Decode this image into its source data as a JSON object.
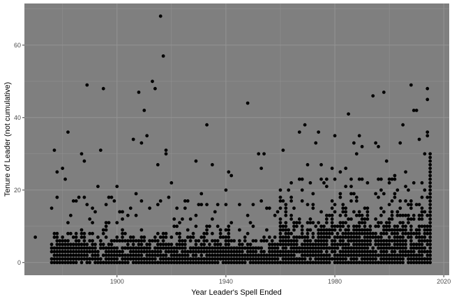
{
  "chart_data": {
    "type": "scatter",
    "title": "",
    "xlabel": "Year Leader's Spell Ended",
    "ylabel": "Tenure of Leader (not cumulative)",
    "xlim": [
      1866,
      2022
    ],
    "ylim": [
      -3.5,
      71.5
    ],
    "x_ticks": [
      1900,
      1940,
      1980,
      2020
    ],
    "y_ticks": [
      0,
      20,
      40,
      60
    ],
    "grid": true,
    "legend": "none",
    "colors": {
      "panel": "#7f7f7f",
      "grid": "#939393",
      "point": "#000000"
    },
    "points": [
      [
        1870,
        7
      ],
      [
        1876,
        15
      ],
      [
        1877,
        31
      ],
      [
        1878,
        25
      ],
      [
        1880,
        26
      ],
      [
        1881,
        23
      ],
      [
        1882,
        36
      ],
      [
        1884,
        17
      ],
      [
        1887,
        30
      ],
      [
        1888,
        28
      ],
      [
        1889,
        49
      ],
      [
        1888,
        18
      ],
      [
        1890,
        12
      ],
      [
        1891,
        15
      ],
      [
        1893,
        21
      ],
      [
        1894,
        31
      ],
      [
        1895,
        48
      ],
      [
        1897,
        18
      ],
      [
        1899,
        17
      ],
      [
        1900,
        21
      ],
      [
        1902,
        12
      ],
      [
        1904,
        13
      ],
      [
        1906,
        34
      ],
      [
        1907,
        19
      ],
      [
        1908,
        47
      ],
      [
        1909,
        33
      ],
      [
        1910,
        42
      ],
      [
        1911,
        35
      ],
      [
        1912,
        15
      ],
      [
        1913,
        50
      ],
      [
        1914,
        48
      ],
      [
        1915,
        27
      ],
      [
        1916,
        68
      ],
      [
        1917,
        57
      ],
      [
        1918,
        30
      ],
      [
        1918,
        31
      ],
      [
        1919,
        18
      ],
      [
        1920,
        22
      ],
      [
        1921,
        12
      ],
      [
        1925,
        15
      ],
      [
        1929,
        28
      ],
      [
        1931,
        19
      ],
      [
        1933,
        38
      ],
      [
        1935,
        27
      ],
      [
        1937,
        16
      ],
      [
        1940,
        20
      ],
      [
        1941,
        25
      ],
      [
        1942,
        24
      ],
      [
        1945,
        16
      ],
      [
        1948,
        44
      ],
      [
        1950,
        16
      ],
      [
        1952,
        30
      ],
      [
        1953,
        26
      ],
      [
        1954,
        30
      ],
      [
        1961,
        31
      ],
      [
        1964,
        18
      ],
      [
        1967,
        36
      ],
      [
        1968,
        23
      ],
      [
        1969,
        38
      ],
      [
        1970,
        27
      ],
      [
        1973,
        33
      ],
      [
        1974,
        36
      ],
      [
        1975,
        27
      ],
      [
        1976,
        22
      ],
      [
        1979,
        26
      ],
      [
        1980,
        35
      ],
      [
        1982,
        25
      ],
      [
        1984,
        26
      ],
      [
        1985,
        41
      ],
      [
        1986,
        23
      ],
      [
        1987,
        33
      ],
      [
        1988,
        30
      ],
      [
        1989,
        35
      ],
      [
        1990,
        32
      ],
      [
        1992,
        22
      ],
      [
        1994,
        46
      ],
      [
        1995,
        33
      ],
      [
        1996,
        32
      ],
      [
        1998,
        47
      ],
      [
        1999,
        28
      ],
      [
        2000,
        22
      ],
      [
        2002,
        24
      ],
      [
        2004,
        33
      ],
      [
        2005,
        38
      ],
      [
        2006,
        25
      ],
      [
        2008,
        49
      ],
      [
        2009,
        42
      ],
      [
        2010,
        42
      ],
      [
        2011,
        34
      ],
      [
        2013,
        30
      ],
      [
        2014,
        48
      ],
      [
        2014,
        45
      ],
      [
        2014,
        36
      ],
      [
        2014,
        35
      ]
    ]
  }
}
